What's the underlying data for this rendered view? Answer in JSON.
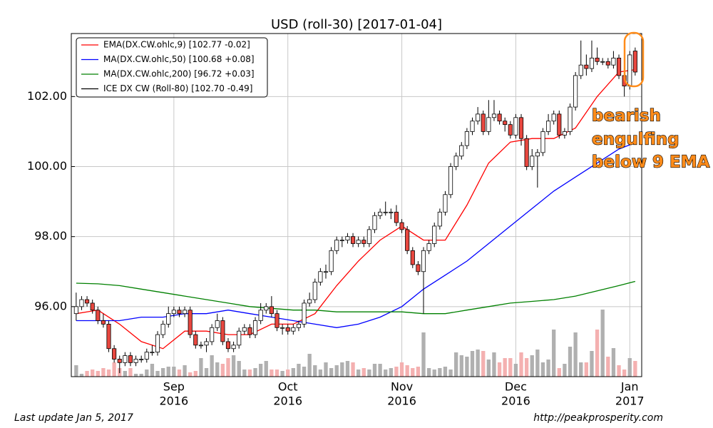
{
  "chart_data": {
    "type": "candlestick",
    "title": "USD (roll-30)  [2017-01-04]",
    "candle_name": "ICE DX CW (Roll-80) [102.70 -0.49]",
    "candle_color": "#000000",
    "up_color": "#ffffff",
    "down_color": "#e8473f",
    "up_volume_color": "#b0b0b0",
    "down_volume_color": "#f4b0b0",
    "open": [
      95.8,
      96.0,
      96.2,
      96.1,
      95.9,
      95.6,
      95.5,
      94.8,
      94.5,
      94.4,
      94.6,
      94.4,
      94.5,
      94.5,
      94.7,
      94.7,
      95.2,
      95.5,
      95.8,
      95.9,
      95.8,
      95.9,
      95.2,
      94.9,
      94.9,
      95.0,
      95.4,
      95.6,
      95.0,
      94.8,
      94.9,
      95.3,
      95.4,
      95.2,
      95.6,
      95.9,
      96.0,
      95.8,
      95.4,
      95.4,
      95.3,
      95.4,
      95.5,
      96.1,
      96.2,
      96.7,
      97.0,
      97.0,
      97.6,
      97.9,
      97.9,
      98.0,
      97.8,
      97.9,
      97.8,
      98.2,
      98.6,
      98.7,
      98.7,
      98.7,
      98.4,
      98.2,
      97.6,
      97.2,
      97.0,
      97.6,
      97.8,
      98.3,
      98.7,
      99.2,
      100.0,
      100.3,
      100.6,
      101.0,
      101.3,
      101.5,
      101.0,
      101.4,
      101.5,
      101.3,
      101.2,
      100.9,
      101.4,
      100.8,
      100.0,
      100.3,
      100.4,
      101.0,
      101.3,
      101.5,
      100.9,
      101.0,
      101.7,
      102.6,
      102.9,
      102.8,
      103.1,
      103.0,
      103.0,
      102.9,
      103.1,
      102.6,
      102.3,
      103.3
    ],
    "high": [
      96.4,
      96.3,
      96.3,
      96.2,
      96.0,
      95.8,
      95.6,
      94.9,
      94.6,
      94.7,
      94.7,
      94.6,
      94.6,
      94.8,
      94.9,
      95.3,
      95.6,
      96.0,
      96.0,
      96.0,
      96.0,
      96.0,
      95.3,
      95.0,
      95.1,
      95.5,
      95.8,
      95.7,
      95.1,
      95.0,
      95.4,
      95.5,
      95.5,
      95.7,
      96.1,
      96.1,
      96.3,
      95.9,
      95.5,
      95.5,
      95.5,
      95.6,
      96.2,
      96.4,
      96.8,
      97.1,
      97.2,
      97.7,
      98.0,
      98.0,
      98.1,
      98.1,
      98.0,
      98.0,
      98.3,
      98.7,
      98.8,
      99.0,
      98.8,
      98.9,
      98.5,
      98.3,
      97.7,
      97.3,
      97.7,
      97.9,
      98.4,
      98.8,
      99.3,
      100.1,
      100.4,
      100.7,
      101.1,
      101.4,
      101.7,
      101.6,
      101.9,
      101.9,
      101.6,
      101.4,
      101.3,
      101.5,
      101.5,
      100.9,
      100.5,
      100.5,
      101.1,
      101.5,
      101.6,
      101.6,
      101.1,
      101.8,
      102.7,
      103.6,
      103.2,
      103.6,
      103.4,
      103.1,
      103.1,
      103.3,
      103.2,
      102.7,
      103.3,
      103.4
    ],
    "low": [
      95.6,
      95.9,
      96.0,
      95.8,
      95.5,
      95.4,
      94.7,
      94.4,
      94.1,
      94.3,
      94.3,
      94.3,
      94.4,
      94.4,
      94.6,
      94.6,
      95.1,
      95.4,
      95.7,
      95.7,
      95.7,
      95.1,
      94.8,
      94.8,
      94.7,
      94.9,
      95.3,
      94.9,
      94.7,
      94.7,
      94.8,
      95.2,
      95.1,
      95.1,
      95.5,
      95.8,
      95.7,
      95.3,
      95.2,
      95.2,
      95.2,
      95.3,
      95.4,
      96.0,
      96.1,
      96.6,
      96.8,
      96.9,
      97.5,
      97.7,
      97.8,
      97.7,
      97.7,
      97.7,
      97.7,
      98.1,
      98.5,
      98.6,
      98.5,
      98.3,
      98.1,
      97.5,
      97.1,
      96.9,
      95.8,
      97.5,
      97.7,
      98.2,
      98.6,
      99.1,
      99.9,
      100.2,
      100.5,
      100.9,
      101.2,
      100.9,
      100.9,
      101.3,
      101.2,
      101.0,
      100.8,
      100.8,
      100.6,
      99.9,
      99.9,
      99.4,
      100.3,
      100.9,
      101.2,
      100.8,
      100.8,
      100.9,
      101.6,
      102.5,
      102.6,
      102.7,
      102.9,
      102.9,
      102.8,
      102.8,
      102.5,
      102.0,
      102.2,
      102.6
    ],
    "close": [
      96.0,
      96.2,
      96.1,
      95.9,
      95.6,
      95.5,
      94.8,
      94.5,
      94.4,
      94.6,
      94.4,
      94.5,
      94.5,
      94.7,
      94.7,
      95.2,
      95.5,
      95.8,
      95.9,
      95.8,
      95.9,
      95.2,
      94.9,
      94.9,
      95.0,
      95.4,
      95.6,
      95.0,
      94.8,
      94.9,
      95.3,
      95.4,
      95.2,
      95.6,
      95.9,
      96.0,
      95.8,
      95.4,
      95.4,
      95.3,
      95.4,
      95.5,
      96.1,
      96.2,
      96.7,
      97.0,
      97.0,
      97.6,
      97.9,
      97.9,
      98.0,
      97.8,
      97.9,
      97.8,
      98.2,
      98.6,
      98.7,
      98.7,
      98.7,
      98.4,
      98.2,
      97.6,
      97.2,
      97.0,
      97.6,
      97.8,
      98.3,
      98.7,
      99.2,
      100.0,
      100.3,
      100.6,
      101.0,
      101.3,
      101.5,
      101.0,
      101.4,
      101.5,
      101.3,
      101.2,
      100.9,
      101.4,
      100.8,
      100.0,
      100.3,
      100.4,
      101.0,
      101.3,
      101.5,
      100.9,
      101.0,
      101.7,
      102.6,
      102.9,
      102.8,
      103.1,
      103.0,
      103.0,
      102.9,
      103.1,
      102.6,
      102.3,
      103.19,
      102.7
    ],
    "volume": [
      16,
      4,
      8,
      10,
      8,
      12,
      10,
      20,
      12,
      8,
      12,
      4,
      4,
      10,
      18,
      8,
      12,
      14,
      14,
      10,
      16,
      6,
      8,
      26,
      12,
      30,
      20,
      18,
      26,
      30,
      22,
      10,
      10,
      12,
      18,
      22,
      10,
      10,
      8,
      10,
      12,
      18,
      14,
      32,
      16,
      10,
      20,
      12,
      16,
      20,
      22,
      20,
      10,
      12,
      10,
      18,
      18,
      10,
      12,
      14,
      20,
      16,
      12,
      14,
      62,
      12,
      10,
      12,
      14,
      10,
      34,
      30,
      28,
      36,
      38,
      36,
      24,
      34,
      20,
      26,
      26,
      18,
      34,
      26,
      30,
      38,
      20,
      24,
      66,
      12,
      18,
      42,
      62,
      20,
      20,
      36,
      66,
      94,
      28,
      40,
      16,
      10,
      26,
      22
    ],
    "volume_lim": [
      0,
      100
    ],
    "series": [
      {
        "name": "EMA(DX.CW.ohlc,9) [102.77 -0.02]",
        "color": "#ff0000",
        "x": [
          0,
          4,
          8,
          12,
          16,
          20,
          24,
          28,
          32,
          36,
          40,
          44,
          48,
          52,
          56,
          60,
          64,
          68,
          72,
          76,
          80,
          84,
          88,
          92,
          96,
          100,
          103
        ],
        "values": [
          95.8,
          95.9,
          95.5,
          95.0,
          94.8,
          95.3,
          95.3,
          95.2,
          95.2,
          95.5,
          95.5,
          95.8,
          96.6,
          97.3,
          97.9,
          98.3,
          97.9,
          97.9,
          98.9,
          100.1,
          100.7,
          100.8,
          100.8,
          101.1,
          102.0,
          102.7,
          102.77
        ]
      },
      {
        "name": "MA(DX.CW.ohlc,50) [100.68 +0.08]",
        "color": "#0000ff",
        "x": [
          0,
          4,
          8,
          12,
          16,
          20,
          24,
          28,
          32,
          36,
          40,
          44,
          48,
          52,
          56,
          60,
          64,
          68,
          72,
          76,
          80,
          84,
          88,
          92,
          96,
          100,
          103
        ],
        "values": [
          95.6,
          95.6,
          95.6,
          95.7,
          95.7,
          95.8,
          95.8,
          95.9,
          95.8,
          95.7,
          95.6,
          95.5,
          95.4,
          95.5,
          95.7,
          96.0,
          96.5,
          96.9,
          97.3,
          97.8,
          98.3,
          98.8,
          99.3,
          99.7,
          100.1,
          100.5,
          100.68
        ]
      },
      {
        "name": "MA(DX.CW.ohlc,200) [96.72 +0.03]",
        "color": "#008000",
        "x": [
          0,
          4,
          8,
          12,
          16,
          20,
          24,
          28,
          32,
          36,
          40,
          44,
          48,
          52,
          56,
          60,
          64,
          68,
          72,
          76,
          80,
          84,
          88,
          92,
          96,
          100,
          103
        ],
        "values": [
          96.67,
          96.65,
          96.6,
          96.5,
          96.4,
          96.3,
          96.2,
          96.1,
          96.0,
          95.95,
          95.9,
          95.9,
          95.85,
          95.85,
          95.85,
          95.85,
          95.8,
          95.8,
          95.9,
          96.0,
          96.1,
          96.15,
          96.2,
          96.3,
          96.45,
          96.6,
          96.72
        ]
      }
    ],
    "xlim": [
      -0.9,
      104.2
    ],
    "ylim": [
      94.0,
      103.8
    ],
    "yticks": [
      {
        "value": 96,
        "label": "96.00"
      },
      {
        "value": 98,
        "label": "98.00"
      },
      {
        "value": 100,
        "label": "100.00"
      },
      {
        "value": 102,
        "label": "102.00"
      }
    ],
    "xticks": [
      {
        "value": 18,
        "label": "Sep",
        "year": "2016"
      },
      {
        "value": 39,
        "label": "Oct",
        "year": "2016"
      },
      {
        "value": 60,
        "label": "Nov",
        "year": "2016"
      },
      {
        "value": 81,
        "label": "Dec",
        "year": "2016"
      },
      {
        "value": 102,
        "label": "Jan",
        "year": "2017"
      }
    ],
    "grid": true,
    "annotation": [
      "bearish",
      "engulfing",
      "below 9 EMA"
    ],
    "footer_left": "Last update Jan  5, 2017",
    "footer_right": "http://peakprosperity.com"
  }
}
